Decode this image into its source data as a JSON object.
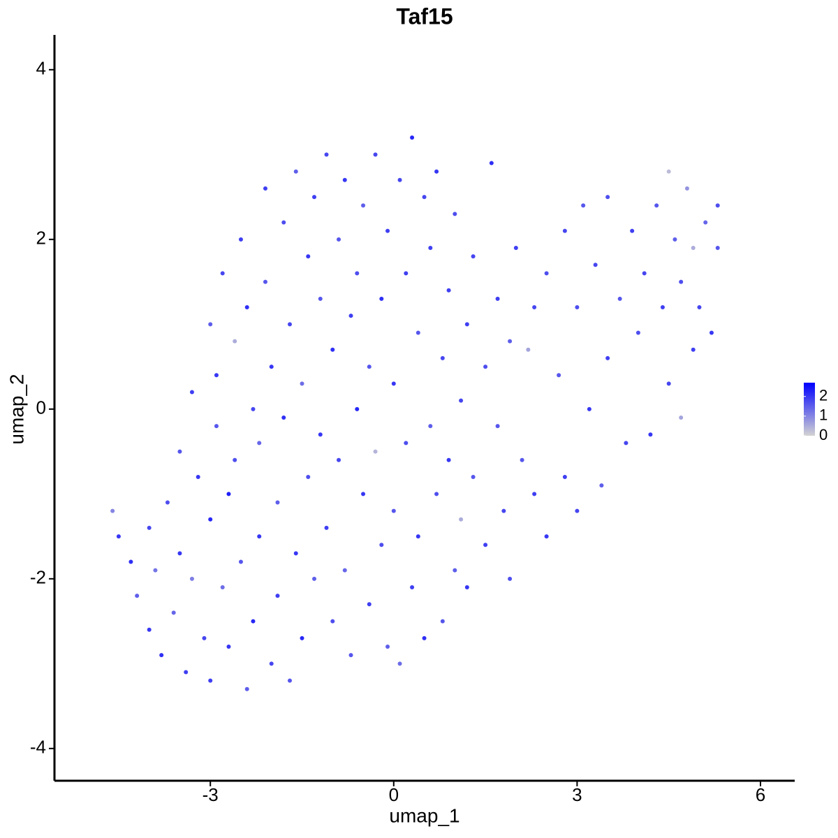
{
  "chart_data": {
    "type": "scatter",
    "title": "Taf15",
    "x_label": "umap_1",
    "y_label": "umap_2",
    "x": [
      -4.6,
      -4.5,
      -4.3,
      -4.2,
      -4.0,
      -4.0,
      -3.9,
      -3.8,
      -3.7,
      -3.6,
      -3.5,
      -3.5,
      -3.4,
      -3.3,
      -3.3,
      -3.2,
      -3.1,
      -3.0,
      -3.0,
      -3.0,
      -2.9,
      -2.9,
      -2.8,
      -2.8,
      -2.7,
      -2.7,
      -2.6,
      -2.6,
      -2.5,
      -2.5,
      -2.4,
      -2.4,
      -2.3,
      -2.3,
      -2.2,
      -2.2,
      -2.1,
      -2.1,
      -2.0,
      -2.0,
      -1.9,
      -1.9,
      -1.8,
      -1.8,
      -1.7,
      -1.7,
      -1.6,
      -1.6,
      -1.5,
      -1.5,
      -1.4,
      -1.4,
      -1.3,
      -1.3,
      -1.2,
      -1.2,
      -1.1,
      -1.1,
      -1.0,
      -1.0,
      -0.9,
      -0.9,
      -0.8,
      -0.8,
      -0.7,
      -0.7,
      -0.6,
      -0.6,
      -0.5,
      -0.5,
      -0.4,
      -0.4,
      -0.3,
      -0.3,
      -0.2,
      -0.2,
      -0.1,
      -0.1,
      0.0,
      0.0,
      0.1,
      0.1,
      0.2,
      0.2,
      0.3,
      0.3,
      0.4,
      0.4,
      0.5,
      0.5,
      0.6,
      0.6,
      0.7,
      0.7,
      0.8,
      0.8,
      0.9,
      0.9,
      1.0,
      1.0,
      1.1,
      1.1,
      1.2,
      1.2,
      1.3,
      1.3,
      1.5,
      1.5,
      1.6,
      1.7,
      1.7,
      1.8,
      1.9,
      1.9,
      2.0,
      2.1,
      2.2,
      2.3,
      2.3,
      2.5,
      2.5,
      2.7,
      2.8,
      2.8,
      3.0,
      3.0,
      3.1,
      3.2,
      3.3,
      3.4,
      3.5,
      3.5,
      3.7,
      3.8,
      3.9,
      4.0,
      4.1,
      4.2,
      4.3,
      4.4,
      4.5,
      4.5,
      4.6,
      4.7,
      4.7,
      4.8,
      4.9,
      4.9,
      5.0,
      5.1,
      5.2,
      5.3,
      5.3
    ],
    "y": [
      -1.2,
      -1.5,
      -1.8,
      -2.2,
      -1.4,
      -2.6,
      -1.9,
      -2.9,
      -1.1,
      -2.4,
      -0.5,
      -1.7,
      -3.1,
      0.2,
      -2.0,
      -0.8,
      -2.7,
      1.0,
      -1.3,
      -3.2,
      0.4,
      -0.2,
      -2.1,
      1.6,
      -1.0,
      -2.8,
      0.8,
      -0.6,
      2.0,
      -1.8,
      -3.3,
      1.2,
      0.0,
      -2.5,
      -0.4,
      -1.5,
      2.6,
      1.5,
      -3.0,
      0.5,
      -1.1,
      -2.2,
      2.2,
      -0.1,
      1.0,
      -3.2,
      -1.7,
      2.8,
      0.3,
      -2.7,
      1.8,
      -0.8,
      2.5,
      -2.0,
      -0.3,
      1.3,
      3.0,
      -1.4,
      -2.5,
      0.7,
      2.0,
      -0.6,
      2.7,
      -1.9,
      1.1,
      -2.9,
      0.0,
      1.6,
      -1.0,
      2.4,
      -2.3,
      0.5,
      3.0,
      -0.5,
      1.3,
      -1.6,
      2.1,
      -2.8,
      0.3,
      -1.2,
      2.7,
      -3.0,
      1.6,
      -0.4,
      3.2,
      -2.1,
      0.9,
      -1.5,
      2.5,
      -2.7,
      -0.2,
      1.9,
      -1.0,
      2.8,
      0.6,
      -2.5,
      1.4,
      -0.6,
      -1.9,
      2.3,
      -1.3,
      0.1,
      1.0,
      -2.1,
      -0.8,
      1.8,
      -1.6,
      0.5,
      2.9,
      -0.2,
      1.3,
      -1.2,
      0.8,
      -2.0,
      1.9,
      -0.6,
      0.7,
      1.2,
      -1.0,
      1.6,
      -1.5,
      0.4,
      2.1,
      -0.8,
      1.2,
      -1.2,
      2.4,
      0.0,
      1.7,
      -0.9,
      2.5,
      0.6,
      1.3,
      -0.4,
      2.1,
      0.9,
      1.6,
      -0.3,
      2.4,
      1.2,
      2.8,
      0.3,
      2.0,
      -0.1,
      1.5,
      2.6,
      0.7,
      1.9,
      1.2,
      2.2,
      0.9,
      2.4,
      1.9
    ],
    "values": [
      1.0,
      2.0,
      2.1,
      1.5,
      1.8,
      2.0,
      1.2,
      2.1,
      1.7,
      1.4,
      1.6,
      2.0,
      1.9,
      1.9,
      1.1,
      2.0,
      1.8,
      1.5,
      2.2,
      1.9,
      2.0,
      1.6,
      1.3,
      1.8,
      2.3,
      2.0,
      0.5,
      1.7,
      1.9,
      1.6,
      1.5,
      2.1,
      1.8,
      2.2,
      1.4,
      2.0,
      1.9,
      1.6,
      1.8,
      2.0,
      1.5,
      1.9,
      1.7,
      2.1,
      1.8,
      1.6,
      2.0,
      1.5,
      1.3,
      2.2,
      2.0,
      1.7,
      1.9,
      1.5,
      2.0,
      1.6,
      1.8,
      1.9,
      1.7,
      2.1,
      1.6,
      1.8,
      2.0,
      1.4,
      1.9,
      1.6,
      2.2,
      1.7,
      2.0,
      1.5,
      1.9,
      1.6,
      1.8,
      0.4,
      2.1,
      1.7,
      1.9,
      1.5,
      2.0,
      1.6,
      1.8,
      1.3,
      1.9,
      1.7,
      2.2,
      1.9,
      1.6,
      2.0,
      1.8,
      2.1,
      1.5,
      1.9,
      1.7,
      2.0,
      1.8,
      1.6,
      1.9,
      2.0,
      1.5,
      1.7,
      0.5,
      1.8,
      1.9,
      2.0,
      1.6,
      1.8,
      1.9,
      1.7,
      2.1,
      1.6,
      1.9,
      1.8,
      1.5,
      1.7,
      1.9,
      1.6,
      0.6,
      1.8,
      1.9,
      1.7,
      2.0,
      1.6,
      1.8,
      1.9,
      1.7,
      1.8,
      1.6,
      2.0,
      1.8,
      1.5,
      1.7,
      1.9,
      1.6,
      1.8,
      1.9,
      1.7,
      1.8,
      2.0,
      1.6,
      1.9,
      0.3,
      1.8,
      1.5,
      0.6,
      1.7,
      0.8,
      1.9,
      0.5,
      1.8,
      1.4,
      2.0,
      1.7,
      1.6
    ],
    "xlim": [
      -5.55,
      6.56
    ],
    "ylim": [
      -4.38,
      4.41
    ],
    "xticks": [
      -3,
      0,
      3,
      6
    ],
    "yticks": [
      -4,
      -2,
      0,
      2,
      4
    ],
    "color_low": "#d3d3d3",
    "color_high": "#0000ff",
    "color_lim": [
      0,
      2.7
    ],
    "color_ticks": [
      0,
      1,
      2
    ]
  }
}
